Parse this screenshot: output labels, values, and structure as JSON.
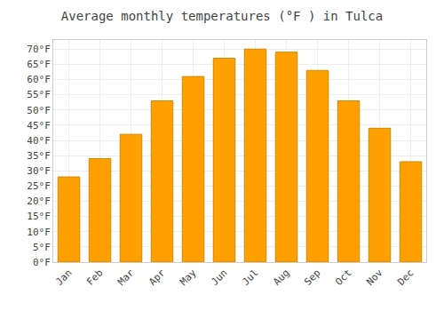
{
  "chart_data": {
    "type": "bar",
    "title": "Average monthly temperatures (°F ) in Tulca",
    "categories": [
      "Jan",
      "Feb",
      "Mar",
      "Apr",
      "May",
      "Jun",
      "Jul",
      "Aug",
      "Sep",
      "Oct",
      "Nov",
      "Dec"
    ],
    "values": [
      28,
      34,
      42,
      53,
      61,
      67,
      70,
      69,
      63,
      53,
      44,
      33
    ],
    "color": "#FFA000",
    "ylim": [
      0,
      73
    ],
    "yticks": [
      {
        "value": 0,
        "label": "0°F"
      },
      {
        "value": 5,
        "label": "5°F"
      },
      {
        "value": 10,
        "label": "10°F"
      },
      {
        "value": 15,
        "label": "15°F"
      },
      {
        "value": 20,
        "label": "20°F"
      },
      {
        "value": 25,
        "label": "25°F"
      },
      {
        "value": 30,
        "label": "30°F"
      },
      {
        "value": 35,
        "label": "35°F"
      },
      {
        "value": 40,
        "label": "40°F"
      },
      {
        "value": 45,
        "label": "45°F"
      },
      {
        "value": 50,
        "label": "50°F"
      },
      {
        "value": 55,
        "label": "55°F"
      },
      {
        "value": 60,
        "label": "60°F"
      },
      {
        "value": 65,
        "label": "65°F"
      },
      {
        "value": 70,
        "label": "70°F"
      }
    ],
    "grid": true
  }
}
